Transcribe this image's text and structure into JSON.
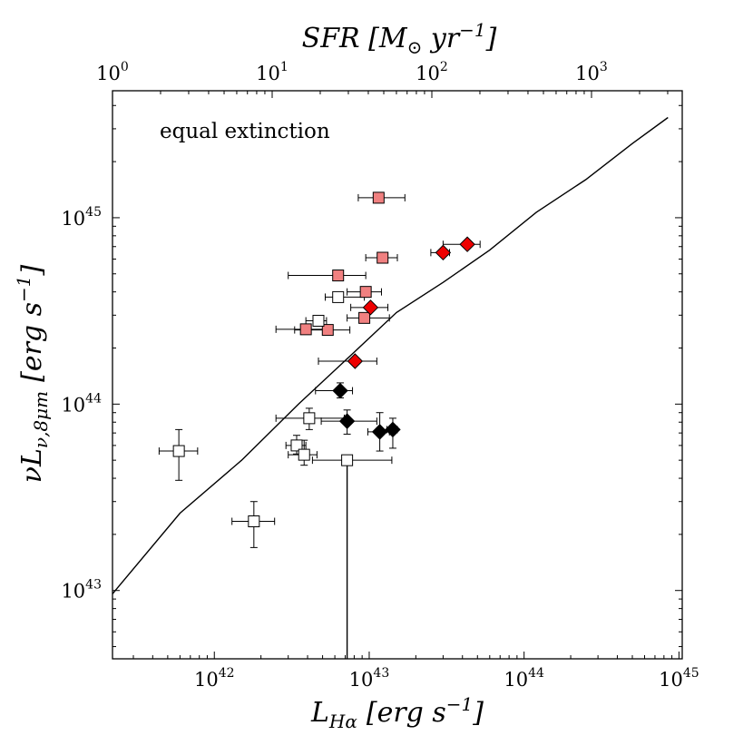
{
  "chart_data": {
    "type": "scatter",
    "title": "",
    "annotation": "equal extinction",
    "x_axis": {
      "label": "L_Hα [erg s^-1]",
      "label_parts": {
        "main": "L",
        "sub": "Hα",
        "unit_open": "[erg s",
        "exp": "−1",
        "unit_close": "]"
      },
      "scale": "log",
      "range": [
        2.2e+41,
        1.05e+45
      ],
      "major_ticks": [
        {
          "value": 1e+42,
          "base": "10",
          "exp": "42"
        },
        {
          "value": 1e+43,
          "base": "10",
          "exp": "43"
        },
        {
          "value": 1e+44,
          "base": "10",
          "exp": "44"
        },
        {
          "value": 1e+45,
          "base": "10",
          "exp": "45"
        }
      ]
    },
    "y_axis": {
      "label": "νL_ν,8μm [erg s^-1]",
      "label_parts": {
        "main": "νL",
        "sub": "ν,8μm",
        "unit_open": "[erg s",
        "exp": "−1",
        "unit_close": "]"
      },
      "scale": "log",
      "range": [
        4.3e+42,
        4.8e+45
      ],
      "major_ticks": [
        {
          "value": 1e+43,
          "base": "10",
          "exp": "43"
        },
        {
          "value": 1e+44,
          "base": "10",
          "exp": "44"
        },
        {
          "value": 1e+45,
          "base": "10",
          "exp": "45"
        }
      ]
    },
    "top_axis": {
      "label": "SFR [M⊙ yr^-1]",
      "label_parts": {
        "main": "SFR [M",
        "sub": "⊙",
        "unit": " yr",
        "exp": "−1",
        "unit_close": "]"
      },
      "scale": "log",
      "range": [
        1,
        3700
      ],
      "major_ticks": [
        {
          "value": 1,
          "text": "10",
          "exp": "0"
        },
        {
          "value": 10,
          "text": "10",
          "exp": "1"
        },
        {
          "value": 100,
          "text": "10",
          "exp": "2"
        },
        {
          "value": 1000,
          "text": "10",
          "exp": "3"
        }
      ]
    },
    "reference_line": {
      "name": "equal extinction",
      "x": [
        2.2e+41,
        6e+41,
        1.5e+42,
        3.5e+42,
        8e+42,
        1.5e+43,
        3e+43,
        6e+43,
        1.2e+44,
        2.5e+44,
        5e+44,
        8.5e+44
      ],
      "y": [
        9.6e+42,
        2.6e+43,
        5e+43,
        1e+44,
        1.9e+44,
        3.1e+44,
        4.5e+44,
        6.7e+44,
        1.07e+45,
        1.6e+45,
        2.5e+45,
        3.45e+45
      ]
    },
    "vertical_line": {
      "x": 7.2e+42,
      "y_from": 5e+43,
      "y_to": 4.3e+42
    },
    "series": [
      {
        "name": "filled squares (light red)",
        "marker": "square",
        "color": "#f08080",
        "points": [
          {
            "x": 1.15e+43,
            "y": 1.28e+45,
            "xerr": [
              8.5e+42,
              1.7e+43
            ],
            "yerr": null
          },
          {
            "x": 6.3e+42,
            "y": 4.9e+44,
            "xerr": [
              3e+42,
              9.5e+42
            ],
            "yerr": null
          },
          {
            "x": 1.22e+43,
            "y": 6.1e+44,
            "xerr": [
              9.5e+42,
              1.52e+43
            ],
            "yerr": null
          },
          {
            "x": 9.5e+42,
            "y": 4e+44,
            "xerr": [
              7.2e+42,
              1.2e+43
            ],
            "yerr": null
          },
          {
            "x": 9.3e+42,
            "y": 2.9e+44,
            "xerr": [
              7.2e+42,
              1.35e+43
            ],
            "yerr": null
          },
          {
            "x": 3.9e+42,
            "y": 2.52e+44,
            "xerr": [
              2.5e+42,
              5.8e+42
            ],
            "yerr": null
          },
          {
            "x": 5.4e+42,
            "y": 2.5e+44,
            "xerr": [
              3.3e+42,
              7.5e+42
            ],
            "yerr": null
          }
        ]
      },
      {
        "name": "open squares",
        "marker": "square",
        "color": "#ffffff",
        "points": [
          {
            "x": 6.3e+42,
            "y": 3.75e+44,
            "xerr": [
              5.2e+42,
              9.3e+42
            ],
            "yerr": null
          },
          {
            "x": 4.7e+42,
            "y": 2.8e+44,
            "xerr": [
              3.9e+42,
              5.3e+42
            ],
            "yerr": null
          },
          {
            "x": 4.1e+42,
            "y": 8.4e+43,
            "xerr": [
              2.5e+42,
              6.9e+42
            ],
            "yerr": [
              7.3e+43,
              9.5e+43
            ]
          },
          {
            "x": 3.4e+42,
            "y": 6e+43,
            "xerr": [
              2.9e+42,
              3.9e+42
            ],
            "yerr": [
              5.4e+43,
              6.8e+43
            ]
          },
          {
            "x": 3.8e+42,
            "y": 5.35e+43,
            "xerr": [
              3e+42,
              4.6e+42
            ],
            "yerr": [
              4.7e+43,
              6.4e+43
            ]
          },
          {
            "x": 7.2e+42,
            "y": 5e+43,
            "xerr": [
              4.3e+42,
              1.4e+43
            ],
            "yerr": null
          },
          {
            "x": 5.9e+41,
            "y": 5.6e+43,
            "xerr": [
              4.4e+41,
              7.8e+41
            ],
            "yerr": [
              3.9e+43,
              7.3e+43
            ]
          },
          {
            "x": 1.8e+42,
            "y": 2.35e+43,
            "xerr": [
              1.3e+42,
              2.45e+42
            ],
            "yerr": [
              1.7e+43,
              3e+43
            ]
          }
        ]
      },
      {
        "name": "red diamonds",
        "marker": "diamond",
        "color": "#ee0000",
        "points": [
          {
            "x": 4.3e+43,
            "y": 7.2e+44,
            "xerr": [
              3e+43,
              5.2e+43
            ],
            "yerr": null
          },
          {
            "x": 3e+43,
            "y": 6.5e+44,
            "xerr": [
              2.5e+43,
              3.3e+43
            ],
            "yerr": null
          },
          {
            "x": 1.02e+43,
            "y": 3.3e+44,
            "xerr": [
              7.6e+42,
              1.32e+43
            ],
            "yerr": null
          },
          {
            "x": 8.1e+42,
            "y": 1.7e+44,
            "xerr": [
              4.7e+42,
              1.12e+43
            ],
            "yerr": null
          }
        ]
      },
      {
        "name": "black diamonds",
        "marker": "diamond",
        "color": "#000000",
        "points": [
          {
            "x": 6.5e+42,
            "y": 1.18e+44,
            "xerr": [
              4.5e+42,
              7.8e+42
            ],
            "yerr": [
              1.08e+44,
              1.3e+44
            ]
          },
          {
            "x": 7.2e+42,
            "y": 8.1e+43,
            "xerr": [
              4.9e+42,
              1.12e+43
            ],
            "yerr": [
              6.9e+43,
              9.3e+43
            ]
          },
          {
            "x": 1.17e+43,
            "y": 7.1e+43,
            "xerr": [
              9.8e+42,
              1.35e+43
            ],
            "yerr": [
              5.6e+43,
              9e+43
            ]
          },
          {
            "x": 1.42e+43,
            "y": 7.3e+43,
            "xerr": [
              1.3e+43,
              1.52e+43
            ],
            "yerr": [
              5.8e+43,
              8.4e+43
            ]
          }
        ]
      }
    ]
  }
}
